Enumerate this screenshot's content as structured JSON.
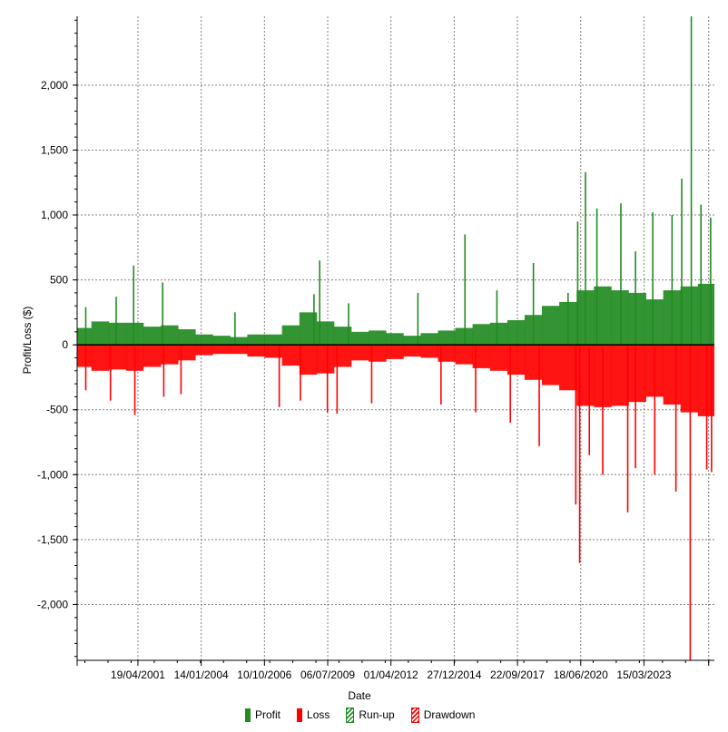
{
  "chart_data": {
    "type": "bar",
    "xlabel": "Date",
    "ylabel": "Profit/Loss ($)",
    "ylim": [
      -2430,
      2530
    ],
    "yticks": [
      2000,
      1500,
      1000,
      500,
      0,
      -500,
      -1000,
      -1500,
      -2000
    ],
    "ytick_labels": [
      "2,000",
      "1,500",
      "1,000",
      "500",
      "0",
      "-500",
      "-1,000",
      "-1,500",
      "-2,000"
    ],
    "xlim": [
      "1998-09-01",
      "2026-04-01"
    ],
    "xticks": [
      "1998-09-01",
      "2001-04-19",
      "2004-01-14",
      "2006-10-10",
      "2009-07-06",
      "2012-04-01",
      "2014-12-27",
      "2017-09-22",
      "2020-06-18",
      "2023-03-15",
      "2026-01-01"
    ],
    "xtick_labels": [
      "",
      "19/04/2001",
      "14/01/2004",
      "10/10/2006",
      "06/07/2009",
      "01/04/2012",
      "27/12/2014",
      "22/09/2017",
      "18/06/2020",
      "15/03/2023",
      ""
    ],
    "grid": true,
    "legend_position": "bottom",
    "series": [
      {
        "name": "Profit",
        "color": "#228B22",
        "x": [
          "1998-12-01",
          "1999-09-01",
          "2000-06-01",
          "2001-03-01",
          "2001-12-01",
          "2002-09-01",
          "2003-06-01",
          "2004-03-01",
          "2004-12-01",
          "2005-09-01",
          "2006-06-01",
          "2007-03-01",
          "2007-12-01",
          "2008-09-01",
          "2009-06-01",
          "2010-03-01",
          "2010-12-01",
          "2011-09-01",
          "2012-06-01",
          "2013-03-01",
          "2013-12-01",
          "2014-09-01",
          "2015-06-01",
          "2016-03-01",
          "2016-12-01",
          "2017-09-01",
          "2018-06-01",
          "2019-03-01",
          "2019-12-01",
          "2020-09-01",
          "2021-06-01",
          "2022-03-01",
          "2022-12-01",
          "2023-09-01",
          "2024-06-01",
          "2025-03-01",
          "2025-12-01"
        ],
        "values": [
          130,
          180,
          170,
          170,
          140,
          150,
          120,
          80,
          70,
          60,
          80,
          80,
          150,
          250,
          180,
          140,
          100,
          110,
          90,
          70,
          90,
          110,
          130,
          160,
          170,
          190,
          230,
          300,
          330,
          420,
          450,
          420,
          400,
          350,
          420,
          450,
          470
        ]
      },
      {
        "name": "Loss",
        "color": "#FF0000",
        "x": [
          "1998-12-01",
          "1999-09-01",
          "2000-06-01",
          "2001-03-01",
          "2001-12-01",
          "2002-09-01",
          "2003-06-01",
          "2004-03-01",
          "2004-12-01",
          "2005-09-01",
          "2006-06-01",
          "2007-03-01",
          "2007-12-01",
          "2008-09-01",
          "2009-06-01",
          "2010-03-01",
          "2010-12-01",
          "2011-09-01",
          "2012-06-01",
          "2013-03-01",
          "2013-12-01",
          "2014-09-01",
          "2015-06-01",
          "2016-03-01",
          "2016-12-01",
          "2017-09-01",
          "2018-06-01",
          "2019-03-01",
          "2019-12-01",
          "2020-09-01",
          "2021-06-01",
          "2022-03-01",
          "2022-12-01",
          "2023-09-01",
          "2024-06-01",
          "2025-03-01",
          "2025-12-01"
        ],
        "values": [
          -170,
          -200,
          -190,
          -200,
          -170,
          -150,
          -120,
          -80,
          -70,
          -70,
          -90,
          -100,
          -160,
          -230,
          -220,
          -170,
          -120,
          -130,
          -110,
          -90,
          -100,
          -130,
          -150,
          -180,
          -200,
          -230,
          -270,
          -310,
          -350,
          -470,
          -480,
          -470,
          -440,
          -400,
          -460,
          -520,
          -550
        ]
      },
      {
        "name": "Run-up",
        "color": "#228B22",
        "x": [
          "1999-01-15",
          "2000-05-10",
          "2001-02-10",
          "2002-05-15",
          "2005-07-01",
          "2008-12-01",
          "2009-03-01",
          "2010-06-01",
          "2013-06-01",
          "2015-06-15",
          "2016-11-01",
          "2018-06-01",
          "2019-12-01",
          "2020-05-01",
          "2020-09-01",
          "2021-03-01",
          "2022-03-15",
          "2022-11-01",
          "2023-08-01",
          "2024-06-01",
          "2024-11-01",
          "2025-04-01",
          "2025-09-01",
          "2026-02-01"
        ],
        "values": [
          290,
          370,
          610,
          480,
          250,
          390,
          650,
          320,
          400,
          850,
          420,
          630,
          400,
          950,
          1330,
          1050,
          1090,
          720,
          1020,
          1000,
          1280,
          2550,
          1080,
          980
        ]
      },
      {
        "name": "Drawdown",
        "color": "#FF0000",
        "x": [
          "1999-01-15",
          "2000-02-10",
          "2001-03-01",
          "2002-06-01",
          "2003-03-01",
          "2007-06-01",
          "2008-05-01",
          "2009-07-01",
          "2009-12-01",
          "2011-06-01",
          "2014-06-01",
          "2015-12-01",
          "2017-06-01",
          "2018-09-01",
          "2020-04-01",
          "2020-06-01",
          "2020-11-01",
          "2021-06-01",
          "2022-07-01",
          "2022-11-01",
          "2023-09-01",
          "2024-08-01",
          "2025-03-15",
          "2025-12-01",
          "2026-02-15"
        ],
        "values": [
          -350,
          -430,
          -540,
          -400,
          -380,
          -480,
          -430,
          -520,
          -530,
          -450,
          -460,
          -520,
          -600,
          -780,
          -1230,
          -1680,
          -850,
          -1000,
          -1290,
          -950,
          -1000,
          -1130,
          -2430,
          -960,
          -980
        ]
      }
    ]
  },
  "legend": [
    {
      "label": "Profit",
      "color": "#228B22",
      "style": "solid"
    },
    {
      "label": "Loss",
      "color": "#FF0000",
      "style": "solid"
    },
    {
      "label": "Run-up",
      "color": "#228B22",
      "style": "hatched"
    },
    {
      "label": "Drawdown",
      "color": "#FF0000",
      "style": "hatched"
    }
  ]
}
